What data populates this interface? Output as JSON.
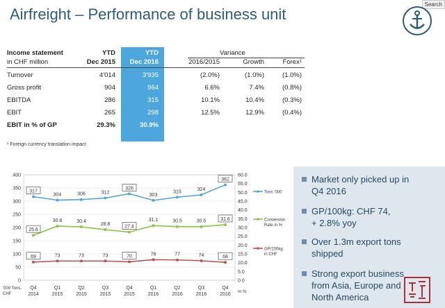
{
  "title": "Airfreight – Performance of business unit",
  "search_label": "Search",
  "table": {
    "header": {
      "label_1": "Income statement",
      "label_2": "in CHF million",
      "ytd15_1": "YTD",
      "ytd15_2": "Dec 2015",
      "ytd16_1": "YTD",
      "ytd16_2": "Dec 2016",
      "variance": "Variance",
      "col_a": "2016/2015",
      "col_b": "Growth",
      "col_c": "Forex¹"
    },
    "rows": [
      {
        "label": "Turnover",
        "y15": "4'014",
        "y16": "3'935",
        "a": "(2.0%)",
        "b": "(1.0%)",
        "c": "(1.0%)"
      },
      {
        "label": "Gross profit",
        "y15": "904",
        "y16": "964",
        "a": "6.6%",
        "b": "7.4%",
        "c": "(0.8%)"
      },
      {
        "label": "EBITDA",
        "y15": "286",
        "y16": "315",
        "a": "10.1%",
        "b": "10.4%",
        "c": "(0.3%)"
      },
      {
        "label": "EBIT",
        "y15": "265",
        "y16": "298",
        "a": "12.5%",
        "b": "12.9%",
        "c": "(0.4%)"
      },
      {
        "label": "EBIT in % of GP",
        "y15": "29.3%",
        "y16": "30.9%",
        "a": "",
        "b": "",
        "c": ""
      }
    ],
    "footnote": "¹ Foreign currency translation impact"
  },
  "colors": {
    "title": "#2a5d7c",
    "highlight": "#4ea7dc",
    "tons": "#4ea7dc",
    "conversion": "#8cc63f",
    "gp": "#c0504d",
    "panel": "#dfe7ee"
  },
  "bullets": [
    {
      "l1": "Market only picked up in",
      "l2": "Q4 2016",
      "l3": ""
    },
    {
      "l1": "GP/100kg: CHF 74,",
      "l2": "+ 2.8% yoy",
      "l3": ""
    },
    {
      "l1": "Over 1.3m export tons",
      "l2": "shipped",
      "l3": ""
    },
    {
      "l1": "Strong export business",
      "l2": "from Asia, Europe and",
      "l3": "North America"
    }
  ],
  "chart_data": {
    "type": "line",
    "categories": [
      "Q4\n2014",
      "Q1\n2015",
      "Q2\n2015",
      "Q3\n2015",
      "Q4\n2015",
      "Q1\n2016",
      "Q2\n2016",
      "Q3\n2016",
      "Q4\n2016"
    ],
    "y_left": {
      "min": 0,
      "max": 400,
      "ticks": [
        0,
        50,
        100,
        150,
        200,
        250,
        300,
        350,
        400
      ]
    },
    "y_right": {
      "min": 0.0,
      "max": 60.0,
      "ticks": [
        "0.0",
        "5.0",
        "10.0",
        "15.0",
        "20.0",
        "25.0",
        "30.0",
        "35.0",
        "40.0",
        "45.0",
        "50.0",
        "55.0",
        "60.0"
      ],
      "unit": "in %"
    },
    "x_axis_note": "'000 Tons, CHF",
    "series": [
      {
        "name": "Tons '000",
        "axis": "left",
        "color": "#4ea7dc",
        "values": [
          317,
          304,
          306,
          312,
          328,
          303,
          315,
          324,
          362
        ],
        "labels": [
          "317",
          "304",
          "306",
          "312",
          "328",
          "303",
          "315",
          "324",
          "362"
        ],
        "boxed": [
          0,
          4,
          8
        ]
      },
      {
        "name": "Conversion Rate in %",
        "axis": "right",
        "color": "#8cc63f",
        "values": [
          25.6,
          30.8,
          30.4,
          28.8,
          27.4,
          31.1,
          30.5,
          30.5,
          31.6
        ],
        "labels": [
          "25.6",
          "30.8",
          "30.4",
          "28.8",
          "27.4",
          "31.1",
          "30.5",
          "30.5",
          "31.6"
        ],
        "boxed": [
          0,
          4,
          8
        ]
      },
      {
        "name": "GP/100kg in CHF",
        "axis": "left",
        "color": "#c0504d",
        "values": [
          69,
          73,
          73,
          73,
          70,
          78,
          77,
          74,
          68
        ],
        "labels": [
          "69",
          "73",
          "73",
          "73",
          "70",
          "78",
          "77",
          "74",
          "68"
        ],
        "boxed": [
          0,
          4,
          8
        ]
      }
    ],
    "legend_position": "right"
  }
}
